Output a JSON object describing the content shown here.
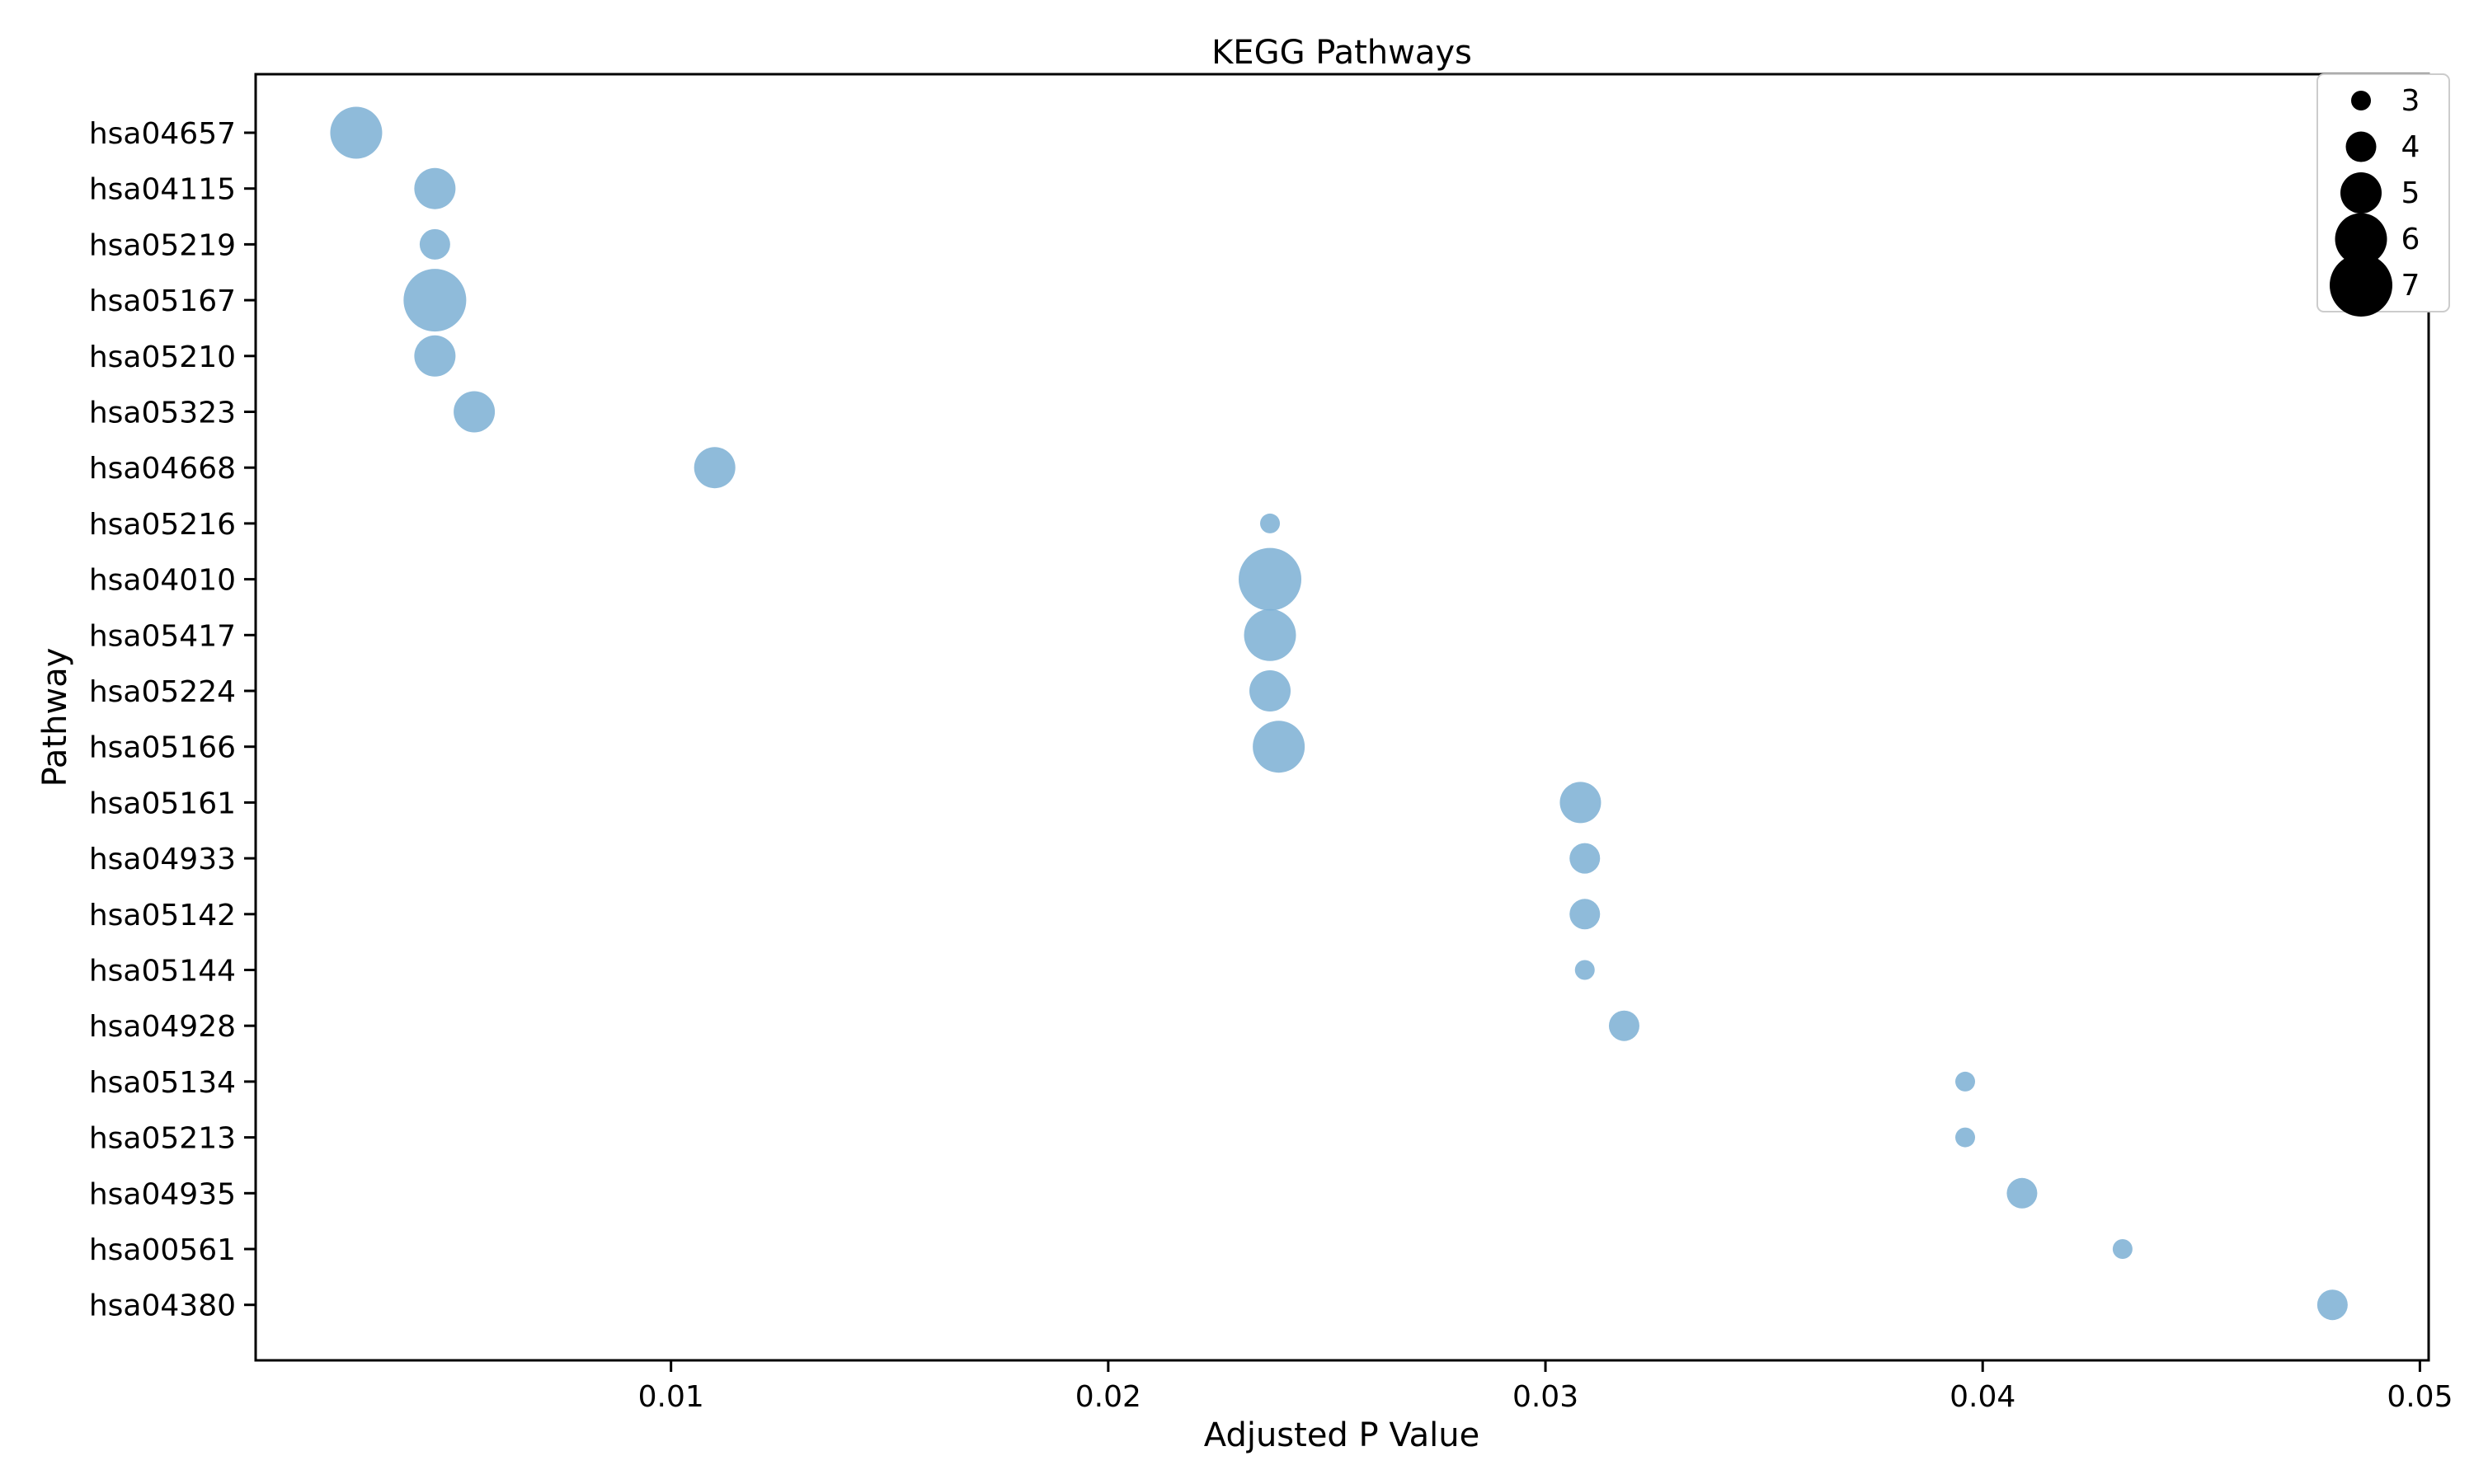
{
  "chart_data": {
    "type": "scatter",
    "title": "KEGG Pathways",
    "xlabel": "Adjusted P Value",
    "ylabel": "Pathway",
    "xlim": [
      0.0005,
      0.0502
    ],
    "xticks": [
      0.01,
      0.02,
      0.03,
      0.04,
      0.05
    ],
    "xtick_labels": [
      "0.01",
      "0.02",
      "0.03",
      "0.04",
      "0.05"
    ],
    "grid": false,
    "legend_position": "top-right",
    "point_color": "#7bafd4",
    "size_legend": [
      3,
      4,
      5,
      6,
      7
    ],
    "points": [
      {
        "pathway": "hsa04657",
        "p_adj": 0.0028,
        "count": 6
      },
      {
        "pathway": "hsa04115",
        "p_adj": 0.0046,
        "count": 5
      },
      {
        "pathway": "hsa05219",
        "p_adj": 0.0046,
        "count": 4
      },
      {
        "pathway": "hsa05167",
        "p_adj": 0.0046,
        "count": 7
      },
      {
        "pathway": "hsa05210",
        "p_adj": 0.0046,
        "count": 5
      },
      {
        "pathway": "hsa05323",
        "p_adj": 0.0055,
        "count": 5
      },
      {
        "pathway": "hsa04668",
        "p_adj": 0.011,
        "count": 5
      },
      {
        "pathway": "hsa05216",
        "p_adj": 0.0237,
        "count": 3
      },
      {
        "pathway": "hsa04010",
        "p_adj": 0.0237,
        "count": 7
      },
      {
        "pathway": "hsa05417",
        "p_adj": 0.0237,
        "count": 6
      },
      {
        "pathway": "hsa05224",
        "p_adj": 0.0237,
        "count": 5
      },
      {
        "pathway": "hsa05166",
        "p_adj": 0.0239,
        "count": 6
      },
      {
        "pathway": "hsa05161",
        "p_adj": 0.0308,
        "count": 5
      },
      {
        "pathway": "hsa04933",
        "p_adj": 0.0309,
        "count": 4
      },
      {
        "pathway": "hsa05142",
        "p_adj": 0.0309,
        "count": 4
      },
      {
        "pathway": "hsa05144",
        "p_adj": 0.0309,
        "count": 3
      },
      {
        "pathway": "hsa04928",
        "p_adj": 0.0318,
        "count": 4
      },
      {
        "pathway": "hsa05134",
        "p_adj": 0.0396,
        "count": 3
      },
      {
        "pathway": "hsa05213",
        "p_adj": 0.0396,
        "count": 3
      },
      {
        "pathway": "hsa04935",
        "p_adj": 0.0409,
        "count": 4
      },
      {
        "pathway": "hsa00561",
        "p_adj": 0.0432,
        "count": 3
      },
      {
        "pathway": "hsa04380",
        "p_adj": 0.048,
        "count": 4
      }
    ]
  }
}
